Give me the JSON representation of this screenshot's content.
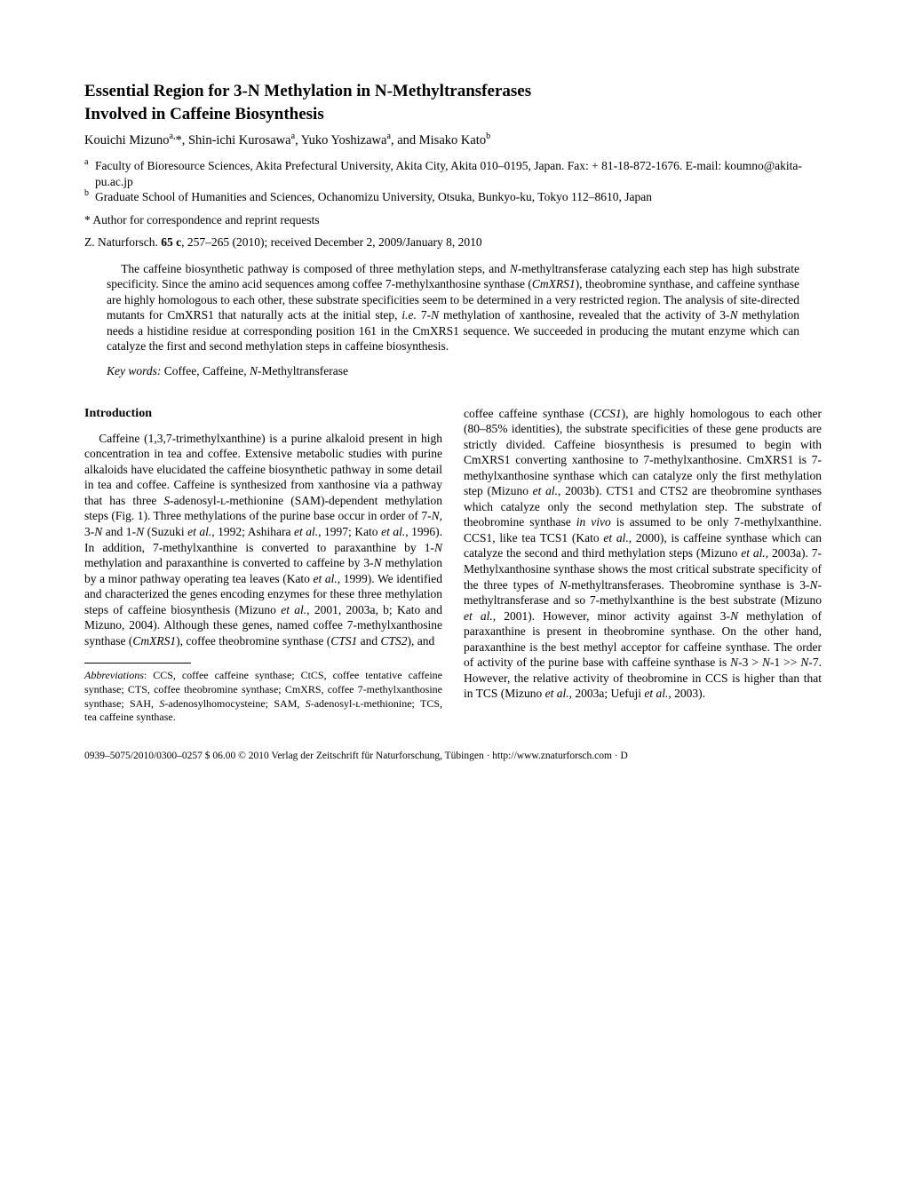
{
  "title_line1": "Essential Region for 3-N Methylation in N-Methyltransferases",
  "title_line2": "Involved in Caffeine Biosynthesis",
  "authors_html": "Kouichi Mizuno<sup>a,</sup>*, Shin-ichi Kurosawa<sup>a</sup>, Yuko Yoshizawa<sup>a</sup>, and Misako Kato<sup>b</sup>",
  "affiliations": [
    {
      "sup": "a",
      "text": "Faculty of Bioresource Sciences, Akita Prefectural University, Akita City, Akita 010–0195, Japan. Fax: + 81-18-872-1676. E-mail: koumno@akita-pu.ac.jp"
    },
    {
      "sup": "b",
      "text": "Graduate School of Humanities and Sciences, Ochanomizu University, Otsuka, Bunkyo-ku, Tokyo 112–8610, Japan"
    }
  ],
  "correspondence": "* Author for correspondence and reprint requests",
  "citation_html": "Z. Naturforsch. <b>65 c</b>, 257–265 (2010); received December 2, 2009/January 8, 2010",
  "abstract_html": "The caffeine biosynthetic pathway is composed of three methylation steps, and <i>N</i>-methyltransferase catalyzing each step has high substrate specificity. Since the amino acid sequences among coffee 7-methylxanthosine synthase (<i>CmXRS1</i>), theobromine synthase, and caffeine synthase are highly homologous to each other, these substrate specificities seem to be determined in a very restricted region. The analysis of site-directed mutants for CmXRS1 that naturally acts at the initial step, <i>i.e.</i> 7-<i>N</i> methylation of xanthosine, revealed that the activity of 3-<i>N</i> methylation needs a histidine residue at corresponding position 161 in the CmXRS1 sequence. We succeeded in producing the mutant enzyme which can catalyze the first and second methylation steps in caffeine biosynthesis.",
  "keywords_html": "<i>Key words:</i> Coffee, Caffeine, <i>N</i>-Methyltransferase",
  "section_heading": "Introduction",
  "intro_col1_html": "Caffeine (1,3,7-trimethylxanthine) is a purine alkaloid present in high concentration in tea and coffee. Extensive metabolic studies with purine alkaloids have elucidated the caffeine biosynthetic pathway in some detail in tea and coffee. Caffeine is synthesized from xanthosine via a pathway that has three <i>S</i>-adenosyl-ʟ-methionine (SAM)-dependent methylation steps (Fig. 1). Three methylations of the purine base occur in order of 7-<i>N</i>, 3-<i>N</i> and 1-<i>N</i> (Suzuki <i>et al.</i>, 1992; Ashihara <i>et al.</i>, 1997; Kato <i>et al.</i>, 1996). In addition, 7-methylxanthine is converted to paraxanthine by 1-<i>N</i> methylation and paraxanthine is converted to caffeine by 3-<i>N</i> methylation by a minor pathway operating tea leaves (Kato <i>et al.</i>, 1999). We identified and characterized the genes encoding enzymes for these three methylation steps of caffeine biosynthesis (Mizuno <i>et al.</i>, 2001, 2003a, b; Kato and Mizuno, 2004). Although these genes, named coffee 7-methylxanthosine synthase (<i>CmXRS1</i>), coffee theobromine synthase (<i>CTS1</i> and <i>CTS2</i>), and",
  "intro_col2_html": "coffee caffeine synthase (<i>CCS1</i>), are highly homologous to each other (80–85% identities), the substrate specificities of these gene products are strictly divided. Caffeine biosynthesis is presumed to begin with CmXRS1 converting xanthosine to 7-methylxanthosine. CmXRS1 is 7-methylxanthosine synthase which can catalyze only the first methylation step (Mizuno <i>et al.</i>, 2003b). CTS1 and CTS2 are theobromine synthases which catalyze only the second methylation step. The substrate of theobromine synthase <i>in vivo</i> is assumed to be only 7-methylxanthine. CCS1, like tea TCS1 (Kato <i>et al.</i>, 2000), is caffeine synthase which can catalyze the second and third methylation steps (Mizuno <i>et al.</i>, 2003a). 7-Methylxanthosine synthase shows the most critical substrate specificity of the three types of <i>N</i>-methyltransferases. Theobromine synthase is 3-<i>N</i>-methyltransferase and so 7-methylxanthine is the best substrate (Mizuno <i>et al.</i>, 2001). However, minor activity against 3-<i>N</i> methylation of paraxanthine is present in theobromine synthase. On the other hand, paraxanthine is the best methyl acceptor for caffeine synthase. The order of activity of the purine base with caffeine synthase is <i>N</i>-3 > <i>N</i>-1 >> <i>N</i>-7. However, the relative activity of theobromine in CCS is higher than that in TCS (Mizuno <i>et al.</i>, 2003a; Uefuji <i>et al.</i>, 2003).",
  "footnote_html": "<i>Abbreviations</i>: CCS, coffee caffeine synthase; CtCS, coffee tentative caffeine synthase; CTS, coffee theobromine synthase; CmXRS, coffee 7-methylxanthosine synthase; SAH, <i>S</i>-adenosylhomocysteine; SAM, <i>S</i>-adenosyl-ʟ-methionine; TCS, tea caffeine synthase.",
  "bottom_line": "0939–5075/2010/0300–0257 $ 06.00   © 2010 Verlag der Zeitschrift für Naturforschung, Tübingen · http://www.znaturforsch.com · D"
}
